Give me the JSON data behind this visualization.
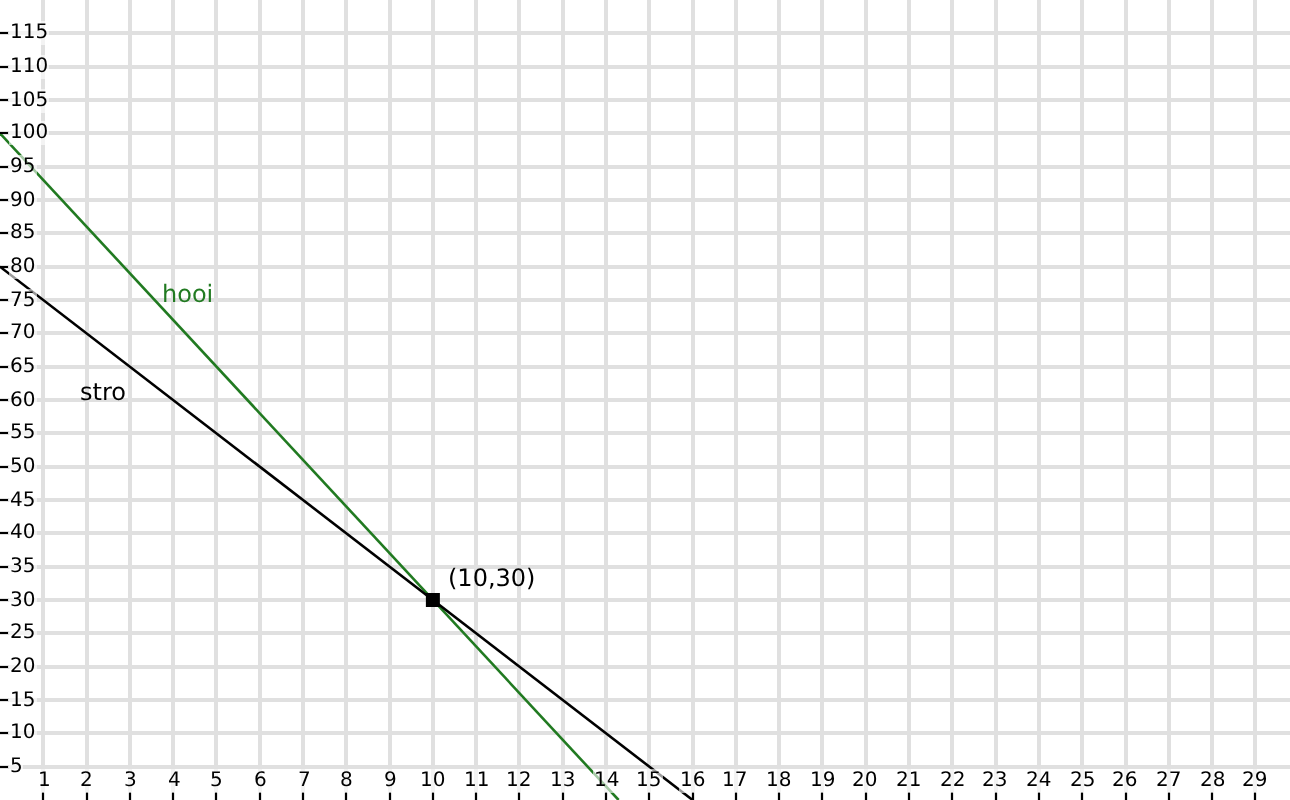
{
  "chart_data": {
    "type": "line",
    "series": [
      {
        "name": "hooi",
        "color": "#217a21",
        "x": [
          0,
          14.29
        ],
        "values": [
          100,
          0
        ]
      },
      {
        "name": "stro",
        "color": "#000000",
        "x": [
          0,
          16
        ],
        "values": [
          80,
          0
        ]
      },
      {
        "type": "scatter",
        "color": "#000000",
        "x": [
          10
        ],
        "values": [
          30
        ],
        "marker": "square"
      }
    ],
    "annotations": [
      {
        "text": "(10,30)",
        "x": 10,
        "y": 30
      }
    ],
    "xlim": [
      0,
      29.8
    ],
    "ylim": [
      0,
      120
    ],
    "xticks": [
      1,
      2,
      3,
      4,
      5,
      6,
      7,
      8,
      9,
      10,
      11,
      12,
      13,
      14,
      15,
      16,
      17,
      18,
      19,
      20,
      21,
      22,
      23,
      24,
      25,
      26,
      27,
      28,
      29
    ],
    "yticks": [
      5,
      10,
      15,
      20,
      25,
      30,
      35,
      40,
      45,
      50,
      55,
      60,
      65,
      70,
      75,
      80,
      85,
      90,
      95,
      100,
      105,
      110,
      115
    ],
    "grid": true,
    "line_style": "solid"
  }
}
